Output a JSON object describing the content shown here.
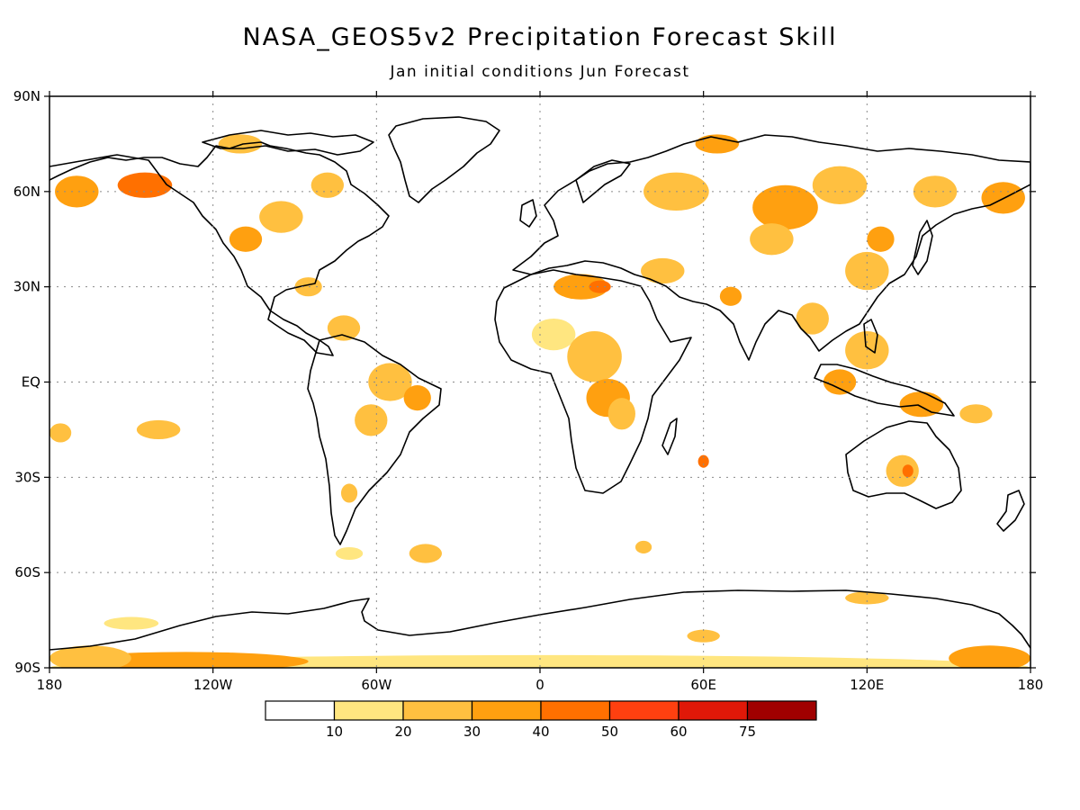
{
  "title": "NASA_GEOS5v2 Precipitation Forecast Skill",
  "subtitle": "Jan initial conditions   Jun Forecast",
  "axes": {
    "lat_labels": [
      {
        "lat": 90,
        "label": "90N"
      },
      {
        "lat": 60,
        "label": "60N"
      },
      {
        "lat": 30,
        "label": "30N"
      },
      {
        "lat": 0,
        "label": "EQ"
      },
      {
        "lat": -30,
        "label": "30S"
      },
      {
        "lat": -60,
        "label": "60S"
      },
      {
        "lat": -90,
        "label": "90S"
      }
    ],
    "lon_labels": [
      {
        "lon": -180,
        "label": "180"
      },
      {
        "lon": -120,
        "label": "120W"
      },
      {
        "lon": -60,
        "label": "60W"
      },
      {
        "lon": 0,
        "label": "0"
      },
      {
        "lon": 60,
        "label": "60E"
      },
      {
        "lon": 120,
        "label": "120E"
      },
      {
        "lon": 180,
        "label": "180"
      }
    ],
    "lat_range": [
      -90,
      90
    ],
    "lon_range": [
      -180,
      180
    ],
    "grid": true
  },
  "colorbar": {
    "colors": [
      "#ffffff",
      "#ffe680",
      "#ffc040",
      "#ffa010",
      "#ff7000",
      "#ff4010",
      "#e01808",
      "#a00000"
    ],
    "labels": [
      "10",
      "20",
      "30",
      "40",
      "50",
      "60",
      "75"
    ]
  },
  "skill_regions": [
    {
      "lon": -170,
      "lat": 60,
      "rx": 8,
      "ry": 5,
      "level": 3
    },
    {
      "lon": -145,
      "lat": 62,
      "rx": 10,
      "ry": 4,
      "level": 4
    },
    {
      "lon": -110,
      "lat": 75,
      "rx": 8,
      "ry": 3,
      "level": 2
    },
    {
      "lon": -95,
      "lat": 52,
      "rx": 8,
      "ry": 5,
      "level": 2
    },
    {
      "lon": -108,
      "lat": 45,
      "rx": 6,
      "ry": 4,
      "level": 3
    },
    {
      "lon": -78,
      "lat": 62,
      "rx": 6,
      "ry": 4,
      "level": 2
    },
    {
      "lon": -85,
      "lat": 30,
      "rx": 5,
      "ry": 3,
      "level": 2
    },
    {
      "lon": -72,
      "lat": 17,
      "rx": 6,
      "ry": 4,
      "level": 2
    },
    {
      "lon": -55,
      "lat": 0,
      "rx": 8,
      "ry": 6,
      "level": 2
    },
    {
      "lon": -62,
      "lat": -12,
      "rx": 6,
      "ry": 5,
      "level": 2
    },
    {
      "lon": -45,
      "lat": -5,
      "rx": 5,
      "ry": 4,
      "level": 3
    },
    {
      "lon": -140,
      "lat": -15,
      "rx": 8,
      "ry": 3,
      "level": 2
    },
    {
      "lon": -176,
      "lat": -16,
      "rx": 4,
      "ry": 3,
      "level": 2
    },
    {
      "lon": -70,
      "lat": -35,
      "rx": 3,
      "ry": 3,
      "level": 2
    },
    {
      "lon": -42,
      "lat": -54,
      "rx": 6,
      "ry": 3,
      "level": 2
    },
    {
      "lon": -70,
      "lat": -54,
      "rx": 5,
      "ry": 2,
      "level": 1
    },
    {
      "lon": 15,
      "lat": 30,
      "rx": 10,
      "ry": 4,
      "level": 3
    },
    {
      "lon": 22,
      "lat": 30,
      "rx": 4,
      "ry": 2,
      "level": 4
    },
    {
      "lon": 5,
      "lat": 15,
      "rx": 8,
      "ry": 5,
      "level": 1
    },
    {
      "lon": 20,
      "lat": 8,
      "rx": 10,
      "ry": 8,
      "level": 2
    },
    {
      "lon": 25,
      "lat": -5,
      "rx": 8,
      "ry": 6,
      "level": 3
    },
    {
      "lon": 30,
      "lat": -10,
      "rx": 5,
      "ry": 5,
      "level": 2
    },
    {
      "lon": 45,
      "lat": 35,
      "rx": 8,
      "ry": 4,
      "level": 2
    },
    {
      "lon": 50,
      "lat": 60,
      "rx": 12,
      "ry": 6,
      "level": 2
    },
    {
      "lon": 65,
      "lat": 75,
      "rx": 8,
      "ry": 3,
      "level": 3
    },
    {
      "lon": 70,
      "lat": 27,
      "rx": 4,
      "ry": 3,
      "level": 3
    },
    {
      "lon": 90,
      "lat": 55,
      "rx": 12,
      "ry": 7,
      "level": 3
    },
    {
      "lon": 110,
      "lat": 62,
      "rx": 10,
      "ry": 6,
      "level": 2
    },
    {
      "lon": 85,
      "lat": 45,
      "rx": 8,
      "ry": 5,
      "level": 2
    },
    {
      "lon": 120,
      "lat": 35,
      "rx": 8,
      "ry": 6,
      "level": 2
    },
    {
      "lon": 125,
      "lat": 45,
      "rx": 5,
      "ry": 4,
      "level": 3
    },
    {
      "lon": 145,
      "lat": 60,
      "rx": 8,
      "ry": 5,
      "level": 2
    },
    {
      "lon": 170,
      "lat": 58,
      "rx": 8,
      "ry": 5,
      "level": 3
    },
    {
      "lon": 100,
      "lat": 20,
      "rx": 6,
      "ry": 5,
      "level": 2
    },
    {
      "lon": 120,
      "lat": 10,
      "rx": 8,
      "ry": 6,
      "level": 2
    },
    {
      "lon": 110,
      "lat": 0,
      "rx": 6,
      "ry": 4,
      "level": 3
    },
    {
      "lon": 140,
      "lat": -7,
      "rx": 8,
      "ry": 4,
      "level": 3
    },
    {
      "lon": 160,
      "lat": -10,
      "rx": 6,
      "ry": 3,
      "level": 2
    },
    {
      "lon": 133,
      "lat": -28,
      "rx": 6,
      "ry": 5,
      "level": 2
    },
    {
      "lon": 135,
      "lat": -28,
      "rx": 2,
      "ry": 2,
      "level": 4
    },
    {
      "lon": 60,
      "lat": -25,
      "rx": 2,
      "ry": 2,
      "level": 4
    },
    {
      "lon": 38,
      "lat": -52,
      "rx": 3,
      "ry": 2,
      "level": 2
    },
    {
      "lon": 120,
      "lat": -68,
      "rx": 8,
      "ry": 2,
      "level": 2
    },
    {
      "lon": 60,
      "lat": -80,
      "rx": 6,
      "ry": 2,
      "level": 2
    },
    {
      "lon": 0,
      "lat": -90,
      "rx": 180,
      "ry": 4,
      "level": 1
    },
    {
      "lon": -130,
      "lat": -88,
      "rx": 45,
      "ry": 3,
      "level": 3
    },
    {
      "lon": -165,
      "lat": -87,
      "rx": 15,
      "ry": 4,
      "level": 2
    },
    {
      "lon": 165,
      "lat": -87,
      "rx": 15,
      "ry": 4,
      "level": 3
    },
    {
      "lon": -150,
      "lat": -76,
      "rx": 10,
      "ry": 2,
      "level": 1
    }
  ]
}
